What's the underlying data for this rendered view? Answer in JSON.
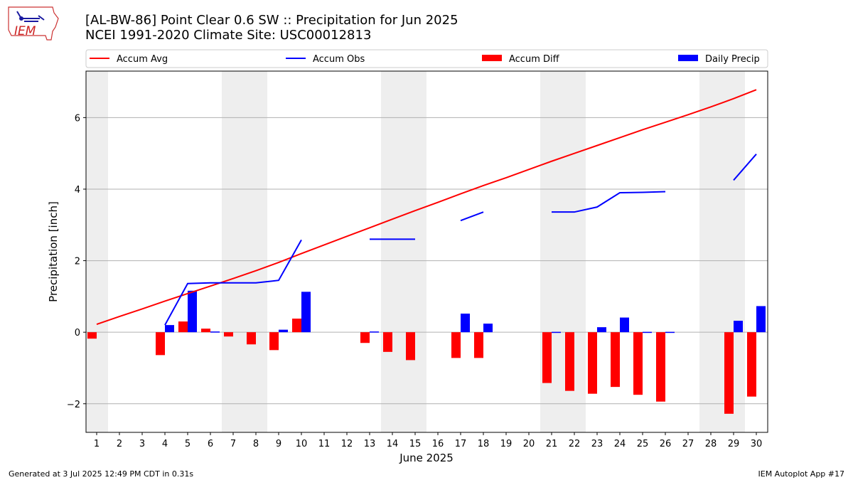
{
  "header": {
    "title_line1": "[AL-BW-86] Point Clear 0.6 SW :: Precipitation for Jun 2025",
    "title_line2": "NCEI 1991-2020 Climate Site: USC00012813",
    "logo_text": "IEM"
  },
  "footer": {
    "generated": "Generated at 3 Jul 2025 12:49 PM CDT in 0.31s",
    "app": "IEM Autoplot App #17"
  },
  "colors": {
    "avg": "#ff0000",
    "obs": "#0000ff",
    "diff": "#ff0000",
    "daily": "#0000ff",
    "weekend": "#eeeeee",
    "grid": "#b0b0b0"
  },
  "chart_data": {
    "type": "bar",
    "xlabel": "June 2025",
    "ylabel": "Precipitation [inch]",
    "ylim": [
      -2.8,
      7.3
    ],
    "yticks": [
      -2,
      0,
      2,
      4,
      6
    ],
    "days": [
      1,
      2,
      3,
      4,
      5,
      6,
      7,
      8,
      9,
      10,
      11,
      12,
      13,
      14,
      15,
      16,
      17,
      18,
      19,
      20,
      21,
      22,
      23,
      24,
      25,
      26,
      27,
      28,
      29,
      30
    ],
    "weekend_days": [
      1,
      7,
      8,
      14,
      15,
      21,
      22,
      28,
      29
    ],
    "grid": true,
    "legend_position": "top",
    "series": [
      {
        "name": "Accum Avg",
        "kind": "line",
        "values": [
          0.22,
          0.44,
          0.65,
          0.87,
          1.08,
          1.29,
          1.5,
          1.72,
          1.95,
          2.2,
          2.44,
          2.68,
          2.92,
          3.16,
          3.4,
          3.63,
          3.87,
          4.1,
          4.32,
          4.55,
          4.78,
          5.0,
          5.22,
          5.44,
          5.66,
          5.87,
          6.08,
          6.3,
          6.53,
          6.78
        ]
      },
      {
        "name": "Accum Obs",
        "kind": "line",
        "values": [
          null,
          null,
          null,
          0.2,
          1.36,
          1.38,
          1.38,
          1.38,
          1.45,
          2.58,
          null,
          null,
          2.6,
          2.6,
          2.6,
          null,
          3.12,
          3.36,
          null,
          null,
          3.36,
          3.36,
          3.5,
          3.9,
          3.91,
          3.93,
          null,
          null,
          4.25,
          4.98
        ]
      },
      {
        "name": "Accum Diff",
        "kind": "bar",
        "values": [
          -0.18,
          null,
          null,
          -0.64,
          0.3,
          0.1,
          -0.12,
          -0.34,
          -0.5,
          0.38,
          null,
          null,
          -0.3,
          -0.55,
          -0.78,
          null,
          -0.72,
          -0.72,
          null,
          null,
          -1.42,
          -1.64,
          -1.72,
          -1.53,
          -1.75,
          -1.94,
          null,
          null,
          -2.28,
          -1.8
        ]
      },
      {
        "name": "Daily Precip",
        "kind": "bar",
        "values": [
          null,
          null,
          null,
          0.2,
          1.16,
          0.02,
          null,
          null,
          0.07,
          1.13,
          null,
          null,
          0.02,
          null,
          null,
          null,
          0.52,
          0.24,
          null,
          null,
          0.01,
          null,
          0.14,
          0.41,
          0.01,
          0.01,
          null,
          null,
          0.32,
          0.73
        ]
      }
    ]
  }
}
